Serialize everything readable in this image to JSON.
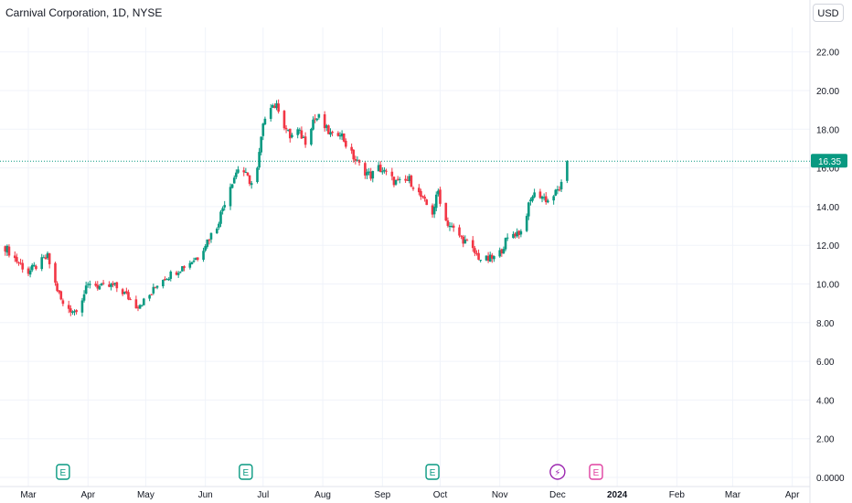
{
  "title": "Carnival Corporation, 1D, NYSE",
  "currency_button": "USD",
  "colors": {
    "up": "#089981",
    "down": "#f23645",
    "grid": "#f0f3fa",
    "text": "#131722",
    "dividend": "#e040a0",
    "split": "#9c27b0"
  },
  "chart_data": {
    "type": "candlestick",
    "title": "Carnival Corporation, 1D, NYSE",
    "y_axis": {
      "ticks": [
        "22.00",
        "20.00",
        "18.00",
        "16.00",
        "14.00",
        "12.00",
        "10.00",
        "8.00",
        "6.00",
        "4.00",
        "2.00",
        "0.0000"
      ],
      "tick_values": [
        22,
        20,
        18,
        16,
        14,
        12,
        10,
        8,
        6,
        4,
        2,
        0
      ],
      "range": [
        0,
        23
      ]
    },
    "x_axis": {
      "ticks": [
        "Mar",
        "Apr",
        "May",
        "Jun",
        "Jul",
        "Aug",
        "Sep",
        "Oct",
        "Nov",
        "Dec",
        "2024",
        "Feb",
        "Mar",
        "Apr"
      ],
      "tick_days": [
        0,
        31,
        61,
        92,
        122,
        153,
        184,
        214,
        245,
        275,
        306,
        337,
        366,
        397
      ],
      "origin": "Mar"
    },
    "last_price": {
      "value": 16.35,
      "label": "16.35"
    },
    "price_path": [
      [
        -12,
        11.9
      ],
      [
        -6,
        11.2
      ],
      [
        0,
        10.6
      ],
      [
        5,
        11.0
      ],
      [
        10,
        11.4
      ],
      [
        14,
        10.0
      ],
      [
        18,
        8.9
      ],
      [
        24,
        8.6
      ],
      [
        28,
        9.3
      ],
      [
        32,
        10.1
      ],
      [
        38,
        9.8
      ],
      [
        44,
        9.9
      ],
      [
        48,
        9.7
      ],
      [
        52,
        9.3
      ],
      [
        56,
        8.9
      ],
      [
        60,
        9.1
      ],
      [
        64,
        9.5
      ],
      [
        68,
        10.2
      ],
      [
        74,
        10.5
      ],
      [
        82,
        11.0
      ],
      [
        88,
        11.4
      ],
      [
        92,
        12.1
      ],
      [
        98,
        13.0
      ],
      [
        104,
        14.9
      ],
      [
        110,
        16.2
      ],
      [
        113,
        15.6
      ],
      [
        116,
        15.2
      ],
      [
        117,
        14.3
      ],
      [
        119,
        15.9
      ],
      [
        121,
        17.5
      ],
      [
        123,
        18.7
      ],
      [
        126,
        19.3
      ],
      [
        130,
        19.1
      ],
      [
        133,
        18.2
      ],
      [
        136,
        17.6
      ],
      [
        140,
        17.9
      ],
      [
        144,
        17.4
      ],
      [
        148,
        18.5
      ],
      [
        151,
        18.6
      ],
      [
        154,
        18.1
      ],
      [
        158,
        17.6
      ],
      [
        162,
        17.9
      ],
      [
        166,
        17.0
      ],
      [
        170,
        16.4
      ],
      [
        174,
        15.9
      ],
      [
        178,
        15.6
      ],
      [
        182,
        16.0
      ],
      [
        186,
        15.7
      ],
      [
        190,
        15.3
      ],
      [
        194,
        15.2
      ],
      [
        198,
        15.4
      ],
      [
        202,
        14.8
      ],
      [
        206,
        14.2
      ],
      [
        210,
        13.7
      ],
      [
        213,
        14.8
      ],
      [
        216,
        13.4
      ],
      [
        220,
        12.9
      ],
      [
        224,
        12.5
      ],
      [
        228,
        12.1
      ],
      [
        232,
        11.6
      ],
      [
        236,
        11.2
      ],
      [
        240,
        11.3
      ],
      [
        244,
        11.4
      ],
      [
        248,
        12.2
      ],
      [
        252,
        12.6
      ],
      [
        256,
        12.7
      ],
      [
        258,
        13.4
      ],
      [
        262,
        14.6
      ],
      [
        266,
        14.6
      ],
      [
        270,
        14.3
      ],
      [
        274,
        14.7
      ],
      [
        277,
        15.1
      ],
      [
        279,
        15.7
      ],
      [
        280,
        16.35
      ]
    ],
    "events": [
      {
        "day": 18,
        "label": "E",
        "kind": "earnings"
      },
      {
        "day": 113,
        "label": "E",
        "kind": "earnings"
      },
      {
        "day": 210,
        "label": "E",
        "kind": "earnings"
      },
      {
        "day": 275,
        "label": "⚡",
        "kind": "split"
      },
      {
        "day": 295,
        "label": "E",
        "kind": "earnings-upcoming"
      }
    ],
    "grid": true,
    "legend": "none"
  }
}
